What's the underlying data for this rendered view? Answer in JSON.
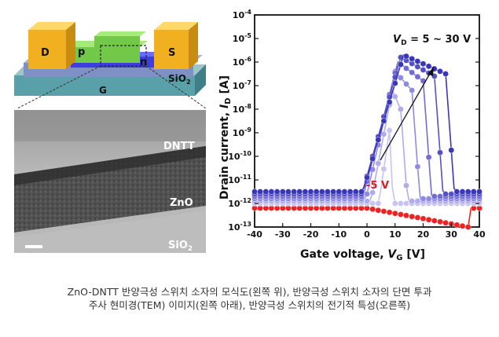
{
  "schematic": {
    "labels": {
      "drain": "D",
      "source": "S",
      "p_layer": "p",
      "n_layer": "n",
      "oxide": "SiO2",
      "gate": "G"
    }
  },
  "tem": {
    "labels": {
      "dntt": "DNTT",
      "zno": "ZnO",
      "sio2": "SiO2"
    }
  },
  "chart_data": {
    "type": "scatter",
    "title": "",
    "xlabel": "Gate voltage, VG [V]",
    "ylabel": "Drain current, ID [A]",
    "xlim": [
      -40,
      40
    ],
    "ylim": [
      -13,
      -4
    ],
    "y_scale": "log",
    "x_ticks": [
      -40,
      -30,
      -20,
      -10,
      0,
      10,
      20,
      30,
      40
    ],
    "y_tick_exponents": [
      -13,
      -12,
      -11,
      -10,
      -9,
      -8,
      -7,
      -6,
      -5,
      -4
    ],
    "grid": false,
    "legend": "none",
    "annotations": {
      "high_vd": "VD = 5 ~ 30 V",
      "low_vd": "-5 V"
    },
    "series": [
      {
        "color": "#ee2222",
        "off_level": -12.2,
        "peak_x": 0,
        "peak_y": -12.2,
        "right_drop": 40,
        "left_slope": 0.3,
        "right_slope": 0.2
      },
      {
        "color": "#c7c4f2",
        "off_level": -12.0,
        "peak_x": 8,
        "peak_y": -8.9,
        "right_drop": 12,
        "left_slope": 0.82,
        "right_slope": 0.9
      },
      {
        "color": "#b0acec",
        "off_level": -11.9,
        "peak_x": 9,
        "peak_y": -7.2,
        "right_drop": 16,
        "left_slope": 0.62,
        "right_slope": 0.9
      },
      {
        "color": "#8f8ae0",
        "off_level": -11.8,
        "peak_x": 10,
        "peak_y": -6.4,
        "right_drop": 20,
        "left_slope": 0.52,
        "right_slope": 0.9
      },
      {
        "color": "#716bd3",
        "off_level": -11.7,
        "peak_x": 11,
        "peak_y": -6.0,
        "right_drop": 24,
        "left_slope": 0.46,
        "right_slope": 0.9
      },
      {
        "color": "#5550c6",
        "off_level": -11.6,
        "peak_x": 12,
        "peak_y": -5.8,
        "right_drop": 28,
        "left_slope": 0.42,
        "right_slope": 0.9
      },
      {
        "color": "#3a36b8",
        "off_level": -11.5,
        "peak_x": 13,
        "peak_y": -5.7,
        "right_drop": 32,
        "left_slope": 0.4,
        "right_slope": 0.9
      }
    ]
  },
  "caption": {
    "line1": "ZnO-DNTT 반양극성 스위치 소자의 모식도(왼쪽 위), 반양극성 스위치 소자의 단면 투과",
    "line2": "주사 현미경(TEM) 이미지(왼쪽 아래), 반양극성 스위치의 전기적 특성(오른쪽)"
  }
}
